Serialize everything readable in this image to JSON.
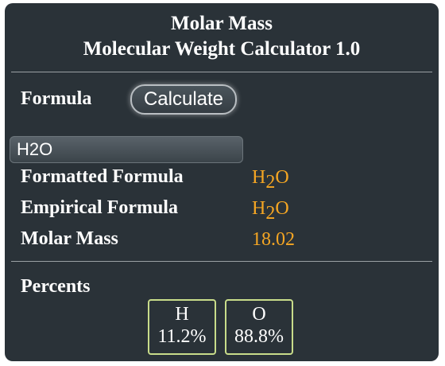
{
  "header": {
    "title": "Molar Mass",
    "subtitle": "Molecular Weight Calculator 1.0"
  },
  "formula": {
    "label": "Formula",
    "calculate_label": "Calculate",
    "input_value": "H2O"
  },
  "results": {
    "formatted_label": "Formatted Formula",
    "formatted_parts": [
      "H",
      "2",
      "O"
    ],
    "empirical_label": "Empirical Formula",
    "empirical_parts": [
      "H",
      "2",
      "O"
    ],
    "molar_mass_label": "Molar Mass",
    "molar_mass_value": "18.02"
  },
  "percents": {
    "label": "Percents",
    "elements": [
      {
        "symbol": "H",
        "percent": "11.2%"
      },
      {
        "symbol": "O",
        "percent": "88.8%"
      }
    ]
  },
  "colors": {
    "panel": "#2a3238",
    "accent": "#f5a623",
    "box_border": "#c8dc8a"
  }
}
